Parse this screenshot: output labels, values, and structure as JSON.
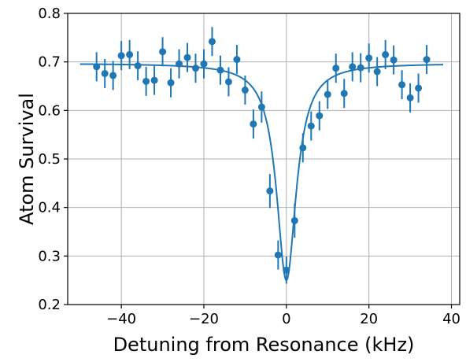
{
  "chart_data": {
    "type": "scatter",
    "title": "",
    "xlabel": "Detuning from Resonance (kHz)",
    "ylabel": "Atom Survival",
    "xlim": [
      -53,
      42
    ],
    "ylim": [
      0.2,
      0.8
    ],
    "xticks": [
      -40,
      -20,
      0,
      20,
      40
    ],
    "xtick_labels": [
      "−40",
      "−20",
      "0",
      "20",
      "40"
    ],
    "yticks": [
      0.2,
      0.3,
      0.4,
      0.5,
      0.6,
      0.7,
      0.8
    ],
    "ytick_labels": [
      "0.2",
      "0.3",
      "0.4",
      "0.5",
      "0.6",
      "0.7",
      "0.8"
    ],
    "grid": true,
    "legend": "none",
    "color": "#1f77b4",
    "series": [
      {
        "kind": "errorbar-points",
        "x": [
          -46,
          -44,
          -42,
          -40,
          -38,
          -36,
          -34,
          -32,
          -30,
          -28,
          -26,
          -24,
          -22,
          -20,
          -18,
          -16,
          -14,
          -12,
          -10,
          -8,
          -6,
          -4,
          -2,
          0,
          2,
          4,
          6,
          8,
          10,
          12,
          14,
          16,
          18,
          20,
          22,
          24,
          26,
          28,
          30,
          32,
          34
        ],
        "y": [
          0.69,
          0.676,
          0.672,
          0.713,
          0.715,
          0.692,
          0.66,
          0.662,
          0.721,
          0.657,
          0.696,
          0.709,
          0.687,
          0.696,
          0.742,
          0.683,
          0.659,
          0.705,
          0.642,
          0.572,
          0.607,
          0.434,
          0.302,
          0.271,
          0.373,
          0.523,
          0.568,
          0.589,
          0.633,
          0.687,
          0.635,
          0.69,
          0.688,
          0.708,
          0.68,
          0.715,
          0.704,
          0.653,
          0.626,
          0.646,
          0.705
        ],
        "yerr": [
          0.03,
          0.03,
          0.03,
          0.03,
          0.03,
          0.03,
          0.03,
          0.03,
          0.03,
          0.03,
          0.03,
          0.03,
          0.03,
          0.03,
          0.03,
          0.03,
          0.03,
          0.03,
          0.03,
          0.03,
          0.032,
          0.035,
          0.03,
          0.028,
          0.035,
          0.03,
          0.03,
          0.03,
          0.03,
          0.03,
          0.03,
          0.03,
          0.03,
          0.03,
          0.03,
          0.03,
          0.03,
          0.03,
          0.03,
          0.03,
          0.03
        ]
      },
      {
        "kind": "fit-line",
        "model": "lorentzian-dip",
        "x_start": -50,
        "x_end": 38,
        "baseline": 0.697,
        "depth": 0.447,
        "center": 0.0,
        "hwhm": 2.9
      }
    ]
  }
}
